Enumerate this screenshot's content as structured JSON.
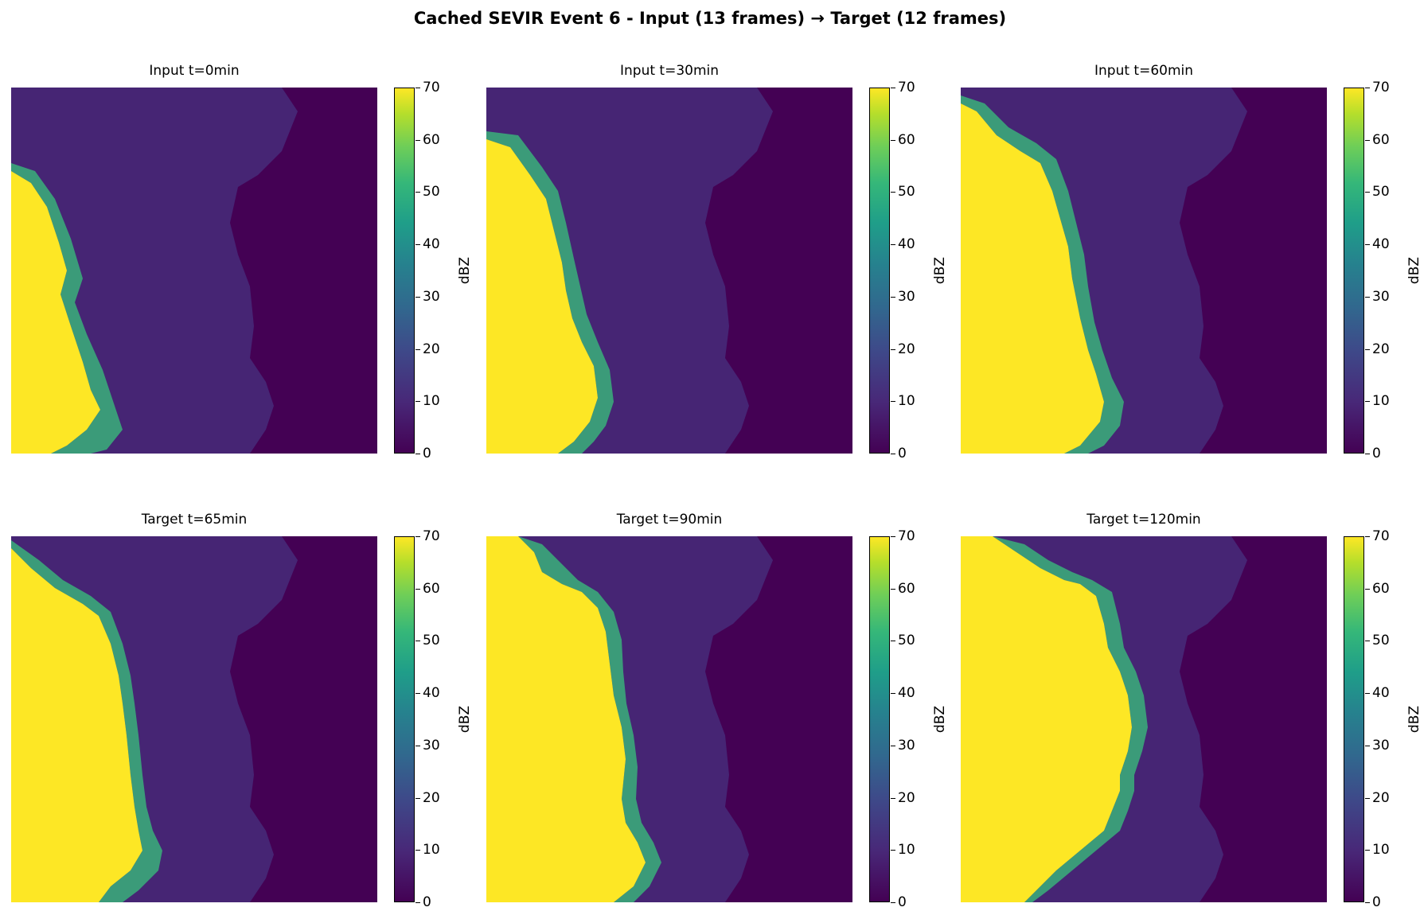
{
  "suptitle": "Cached SEVIR Event 6 - Input (13 frames) → Target (12 frames)",
  "chart_data": {
    "type": "heatmap",
    "colormap": "viridis",
    "panels": [
      {
        "title": "Input t=0min",
        "kind": "Input",
        "t_min": 0
      },
      {
        "title": "Input t=30min",
        "kind": "Input",
        "t_min": 30
      },
      {
        "title": "Input t=60min",
        "kind": "Input",
        "t_min": 60
      },
      {
        "title": "Target t=65min",
        "kind": "Target",
        "t_min": 65
      },
      {
        "title": "Target t=90min",
        "kind": "Target",
        "t_min": 90
      },
      {
        "title": "Target t=120min",
        "kind": "Target",
        "t_min": 120
      }
    ],
    "colorbar": {
      "label": "dBZ",
      "range": [
        0,
        70
      ],
      "ticks": [
        "0",
        "10",
        "20",
        "30",
        "40",
        "50",
        "60",
        "70"
      ]
    }
  }
}
